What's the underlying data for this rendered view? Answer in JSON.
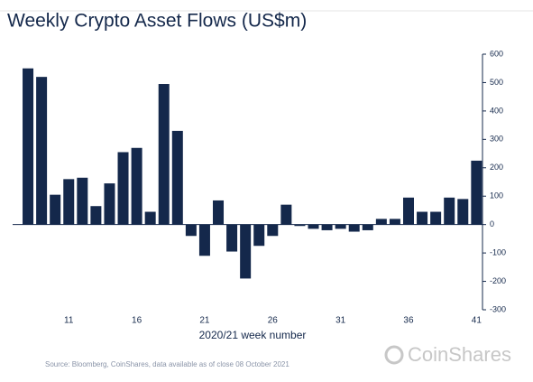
{
  "chart_data": {
    "type": "bar",
    "title": "Weekly Crypto Asset Flows (US$m)",
    "x_label": "2020/21 week number",
    "source": "Source: Bloomberg, CoinShares, data available as of close 08 October 2021",
    "brand": "CoinShares",
    "color": "#14284b",
    "categories": [
      null,
      null,
      null,
      "11",
      null,
      null,
      null,
      null,
      "16",
      null,
      null,
      null,
      null,
      "21",
      null,
      null,
      null,
      null,
      "26",
      null,
      null,
      null,
      null,
      "31",
      null,
      null,
      null,
      null,
      "36",
      null,
      null,
      null,
      null,
      "41"
    ],
    "values": [
      550,
      520,
      105,
      160,
      165,
      65,
      145,
      255,
      270,
      45,
      495,
      330,
      -40,
      -110,
      85,
      -95,
      -190,
      -75,
      -40,
      70,
      -5,
      -15,
      -20,
      -15,
      -25,
      -20,
      20,
      20,
      95,
      45,
      45,
      95,
      90,
      225
    ],
    "ylim": [
      -300,
      600
    ],
    "yticks": [
      -300,
      -200,
      -100,
      0,
      100,
      200,
      300,
      400,
      500,
      600
    ]
  }
}
